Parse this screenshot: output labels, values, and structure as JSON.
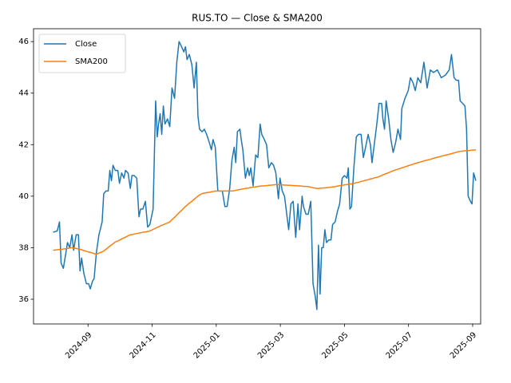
{
  "chart_data": {
    "type": "line",
    "title": "RUS.TO — Close & SMA200",
    "x": [
      7.91,
      8.04,
      8.11,
      8.16,
      8.23,
      8.31,
      8.36,
      8.43,
      8.5,
      8.55,
      8.63,
      8.7,
      8.75,
      8.8,
      8.87,
      8.95,
      9.02,
      9.07,
      9.14,
      9.19,
      9.26,
      9.34,
      9.44,
      9.49,
      9.56,
      9.63,
      9.68,
      9.73,
      9.78,
      9.85,
      9.93,
      9.98,
      10.05,
      10.12,
      10.17,
      10.25,
      10.32,
      10.37,
      10.44,
      10.52,
      10.59,
      10.64,
      10.71,
      10.79,
      10.86,
      10.93,
      11.03,
      11.11,
      11.16,
      11.2,
      11.25,
      11.3,
      11.35,
      11.4,
      11.48,
      11.55,
      11.62,
      11.7,
      11.77,
      11.84,
      11.92,
      11.99,
      12.04,
      12.09,
      12.16,
      12.24,
      12.31,
      12.38,
      12.43,
      12.48,
      12.56,
      12.63,
      12.7,
      12.78,
      12.85,
      12.9,
      12.97,
      13.05,
      13.12,
      13.19,
      13.27,
      13.34,
      13.42,
      13.49,
      13.56,
      13.61,
      13.66,
      13.74,
      13.78,
      13.83,
      13.91,
      13.98,
      14.03,
      14.08,
      14.15,
      14.23,
      14.3,
      14.37,
      14.42,
      14.5,
      14.57,
      14.64,
      14.72,
      14.79,
      14.86,
      14.94,
      14.99,
      15.06,
      15.13,
      15.18,
      15.26,
      15.33,
      15.4,
      15.48,
      15.55,
      15.6,
      15.68,
      15.72,
      15.8,
      15.87,
      15.95,
      16.02,
      16.09,
      16.14,
      16.19,
      16.24,
      16.29,
      16.34,
      16.39,
      16.44,
      16.51,
      16.58,
      16.63,
      16.71,
      16.78,
      16.85,
      16.93,
      17.0,
      17.08,
      17.12,
      17.17,
      17.22,
      17.3,
      17.37,
      17.44,
      17.52,
      17.59,
      17.66,
      17.74,
      17.81,
      17.86,
      17.93,
      18.01,
      18.08,
      18.16,
      18.2,
      18.25,
      18.3,
      18.38,
      18.45,
      18.52,
      18.6,
      18.67,
      18.75,
      18.79,
      18.89,
      18.99,
      19.06,
      19.14,
      19.21,
      19.29,
      19.38,
      19.48,
      19.58,
      19.68,
      19.78,
      19.9,
      20.02,
      20.15,
      20.27,
      20.34,
      20.42,
      20.49,
      20.56,
      20.61,
      20.69,
      20.76,
      20.81,
      20.86,
      20.93,
      20.98,
      21.03,
      21.1
    ],
    "series": [
      {
        "name": "Close",
        "color": "#1f77b4",
        "values": [
          38.6,
          38.65,
          39.0,
          37.4,
          37.2,
          37.8,
          38.2,
          38.0,
          38.5,
          37.9,
          38.5,
          38.5,
          37.1,
          37.6,
          37.0,
          36.6,
          36.6,
          36.4,
          36.7,
          36.8,
          37.8,
          38.5,
          39.0,
          40.1,
          40.2,
          40.2,
          41.0,
          40.6,
          41.2,
          41.0,
          41.0,
          40.5,
          40.9,
          40.7,
          41.0,
          40.9,
          40.3,
          40.8,
          40.8,
          40.7,
          39.2,
          39.5,
          39.5,
          39.8,
          38.8,
          38.9,
          39.5,
          43.7,
          42.3,
          42.8,
          43.2,
          42.4,
          43.5,
          42.8,
          43.0,
          42.7,
          44.2,
          43.8,
          45.2,
          46.0,
          45.8,
          45.6,
          45.8,
          45.3,
          45.5,
          45.1,
          44.2,
          45.2,
          43.1,
          42.6,
          42.5,
          42.6,
          42.4,
          42.1,
          41.8,
          42.2,
          41.9,
          40.2,
          40.2,
          40.2,
          39.6,
          39.6,
          40.3,
          41.4,
          41.9,
          41.3,
          42.5,
          42.6,
          42.2,
          41.8,
          40.7,
          41.1,
          40.8,
          41.1,
          40.4,
          41.6,
          41.5,
          42.8,
          42.4,
          42.2,
          42.0,
          41.1,
          41.3,
          41.2,
          40.9,
          39.9,
          40.7,
          40.2,
          40.0,
          39.5,
          38.7,
          39.7,
          39.8,
          38.4,
          39.7,
          38.7,
          40.0,
          39.6,
          39.3,
          39.3,
          39.8,
          36.6,
          36.1,
          35.6,
          38.1,
          36.2,
          38.0,
          38.0,
          38.7,
          38.2,
          38.3,
          38.3,
          38.9,
          39.0,
          39.4,
          39.7,
          40.7,
          40.8,
          40.7,
          41.1,
          39.5,
          39.6,
          41.2,
          42.3,
          42.4,
          42.4,
          41.5,
          41.9,
          42.4,
          42.0,
          41.3,
          42.0,
          42.8,
          43.6,
          43.6,
          43.0,
          42.6,
          43.7,
          43.0,
          42.2,
          41.7,
          42.1,
          42.6,
          42.2,
          43.4,
          43.8,
          44.1,
          44.6,
          44.4,
          44.1,
          44.6,
          44.4,
          45.2,
          44.2,
          44.9,
          44.8,
          44.9,
          44.6,
          44.7,
          44.9,
          45.5,
          44.6,
          44.5,
          44.5,
          43.7,
          43.6,
          43.5,
          42.6,
          40.0,
          39.8,
          39.7,
          40.9,
          40.6
        ]
      },
      {
        "name": "SMA200",
        "color": "#ff7f0e",
        "values": [
          37.9,
          37.92,
          37.93,
          37.93,
          37.95,
          37.96,
          37.97,
          37.99,
          38.0,
          37.99,
          37.97,
          37.95,
          37.94,
          37.92,
          37.89,
          37.86,
          37.83,
          37.82,
          37.79,
          37.77,
          37.75,
          37.79,
          37.84,
          37.87,
          37.94,
          38.01,
          38.06,
          38.11,
          38.15,
          38.22,
          38.26,
          38.29,
          38.34,
          38.38,
          38.41,
          38.46,
          38.5,
          38.51,
          38.53,
          38.55,
          38.57,
          38.58,
          38.6,
          38.61,
          38.63,
          38.65,
          38.71,
          38.76,
          38.79,
          38.81,
          38.84,
          38.87,
          38.89,
          38.92,
          38.96,
          39.0,
          39.09,
          39.18,
          39.27,
          39.36,
          39.45,
          39.54,
          39.6,
          39.65,
          39.73,
          39.8,
          39.88,
          39.95,
          40.0,
          40.05,
          40.1,
          40.12,
          40.14,
          40.15,
          40.17,
          40.18,
          40.2,
          40.2,
          40.2,
          40.2,
          40.2,
          40.2,
          40.2,
          40.2,
          40.21,
          40.23,
          40.24,
          40.26,
          40.27,
          40.28,
          40.3,
          40.31,
          40.32,
          40.34,
          40.35,
          40.36,
          40.38,
          40.39,
          40.4,
          40.4,
          40.41,
          40.42,
          40.43,
          40.44,
          40.45,
          40.45,
          40.44,
          40.44,
          40.43,
          40.43,
          40.42,
          40.42,
          40.41,
          40.41,
          40.4,
          40.4,
          40.39,
          40.38,
          40.38,
          40.37,
          40.35,
          40.33,
          40.31,
          40.3,
          40.3,
          40.31,
          40.31,
          40.32,
          40.32,
          40.33,
          40.34,
          40.35,
          40.36,
          40.37,
          40.39,
          40.41,
          40.42,
          40.44,
          40.45,
          40.46,
          40.47,
          40.48,
          40.5,
          40.52,
          40.54,
          40.57,
          40.59,
          40.62,
          40.64,
          40.67,
          40.68,
          40.71,
          40.73,
          40.76,
          40.8,
          40.83,
          40.85,
          40.88,
          40.91,
          40.95,
          40.99,
          41.02,
          41.05,
          41.08,
          41.1,
          41.14,
          41.18,
          41.21,
          41.24,
          41.27,
          41.3,
          41.33,
          41.37,
          41.4,
          41.43,
          41.47,
          41.51,
          41.55,
          41.59,
          41.63,
          41.65,
          41.68,
          41.7,
          41.73,
          41.74,
          41.75,
          41.76,
          41.77,
          41.77,
          41.78,
          41.79,
          41.79,
          41.8
        ]
      }
    ],
    "xlim": [
      7.3,
      21.25
    ],
    "xticks": [
      {
        "value": 9,
        "label": "2024-09"
      },
      {
        "value": 11,
        "label": "2024-11"
      },
      {
        "value": 13,
        "label": "2025-01"
      },
      {
        "value": 15,
        "label": "2025-03"
      },
      {
        "value": 17,
        "label": "2025-05"
      },
      {
        "value": 19,
        "label": "2025-07"
      },
      {
        "value": 21,
        "label": "2025-09"
      }
    ],
    "ylim": [
      35.04,
      46.5
    ],
    "yticks": [
      36,
      38,
      40,
      42,
      44,
      46
    ],
    "grid": false,
    "legend": "upper-left"
  }
}
